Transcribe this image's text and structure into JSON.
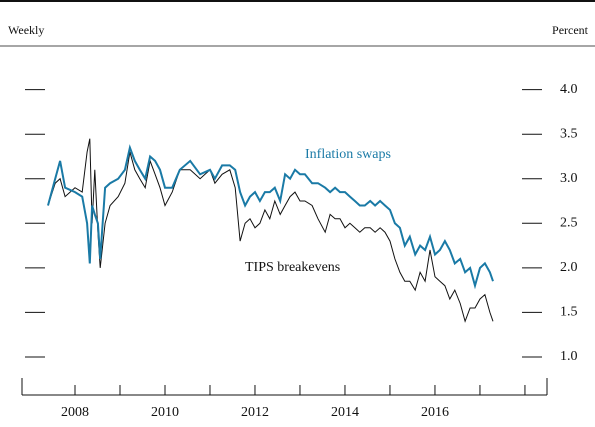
{
  "chart_data": {
    "type": "line",
    "frequency_label": "Weekly",
    "y_unit_label": "Percent",
    "x": [
      2007.4,
      2007.56,
      2007.67,
      2007.78,
      2008,
      2008.16,
      2008.27,
      2008.33,
      2008.38,
      2008.44,
      2008.51,
      2008.56,
      2008.67,
      2008.78,
      2008.96,
      2009.11,
      2009.22,
      2009.33,
      2009.44,
      2009.56,
      2009.67,
      2009.78,
      2009.89,
      2010,
      2010.16,
      2010.33,
      2010.56,
      2010.78,
      2011,
      2011.11,
      2011.27,
      2011.44,
      2011.56,
      2011.67,
      2011.78,
      2011.89,
      2012,
      2012.11,
      2012.22,
      2012.33,
      2012.44,
      2012.56,
      2012.67,
      2012.78,
      2012.89,
      2013,
      2013.11,
      2013.27,
      2013.4,
      2013.56,
      2013.67,
      2013.78,
      2013.89,
      2014,
      2014.11,
      2014.22,
      2014.33,
      2014.44,
      2014.56,
      2014.67,
      2014.78,
      2014.89,
      2015,
      2015.11,
      2015.22,
      2015.33,
      2015.44,
      2015.56,
      2015.67,
      2015.78,
      2015.89,
      2016,
      2016.11,
      2016.22,
      2016.33,
      2016.44,
      2016.56,
      2016.67,
      2016.78,
      2016.89,
      2017,
      2017.11,
      2017.22,
      2017.29
    ],
    "series": [
      {
        "name": "Inflation swaps",
        "color": "#1a7aa6",
        "values": [
          2.7,
          3.0,
          3.2,
          2.9,
          2.85,
          2.8,
          2.5,
          2.05,
          2.7,
          2.6,
          2.5,
          2.1,
          2.9,
          2.95,
          3.0,
          3.1,
          3.35,
          3.2,
          3.1,
          3.0,
          3.25,
          3.2,
          3.1,
          2.9,
          2.9,
          3.1,
          3.2,
          3.05,
          3.1,
          3.0,
          3.15,
          3.15,
          3.1,
          2.85,
          2.7,
          2.8,
          2.85,
          2.75,
          2.85,
          2.85,
          2.9,
          2.75,
          3.05,
          3.0,
          3.1,
          3.05,
          3.05,
          2.95,
          2.95,
          2.9,
          2.85,
          2.9,
          2.85,
          2.85,
          2.8,
          2.75,
          2.7,
          2.7,
          2.75,
          2.7,
          2.75,
          2.7,
          2.65,
          2.5,
          2.45,
          2.25,
          2.35,
          2.15,
          2.25,
          2.2,
          2.35,
          2.15,
          2.2,
          2.3,
          2.2,
          2.05,
          2.1,
          1.95,
          2.0,
          1.8,
          2.0,
          2.05,
          1.95,
          1.85
        ]
      },
      {
        "name": "TIPS breakevens",
        "color": "#111111",
        "values": [
          2.7,
          2.95,
          3.0,
          2.8,
          2.9,
          2.85,
          3.3,
          3.45,
          2.5,
          3.1,
          2.4,
          2.0,
          2.5,
          2.7,
          2.8,
          2.95,
          3.3,
          3.1,
          3.0,
          2.9,
          3.2,
          3.05,
          2.9,
          2.7,
          2.85,
          3.1,
          3.1,
          3.0,
          3.1,
          2.95,
          3.05,
          3.1,
          2.9,
          2.3,
          2.5,
          2.55,
          2.45,
          2.5,
          2.65,
          2.55,
          2.75,
          2.6,
          2.7,
          2.8,
          2.85,
          2.75,
          2.75,
          2.7,
          2.55,
          2.4,
          2.6,
          2.55,
          2.55,
          2.45,
          2.5,
          2.45,
          2.4,
          2.45,
          2.45,
          2.4,
          2.45,
          2.4,
          2.3,
          2.1,
          1.95,
          1.85,
          1.85,
          1.75,
          1.95,
          1.85,
          2.2,
          1.9,
          1.85,
          1.8,
          1.65,
          1.75,
          1.6,
          1.4,
          1.55,
          1.55,
          1.65,
          1.7,
          1.5,
          1.4
        ]
      }
    ],
    "xlim": [
      2007.4,
      2018.49
    ],
    "xticks": [
      2008,
      2010,
      2012,
      2014,
      2016
    ],
    "xtick_marks": [
      2009,
      2011,
      2013,
      2015,
      2017,
      2018
    ],
    "ylim": [
      0.6,
      4.4
    ],
    "yticks": [
      {
        "value": 1,
        "label": "1.0"
      },
      {
        "value": 1.5,
        "label": "1.5"
      },
      {
        "value": 2,
        "label": "2.0"
      },
      {
        "value": 2.5,
        "label": "2.5"
      },
      {
        "value": 3,
        "label": "3.0"
      },
      {
        "value": 3.5,
        "label": "3.5"
      },
      {
        "value": 4,
        "label": "4.0"
      }
    ]
  }
}
